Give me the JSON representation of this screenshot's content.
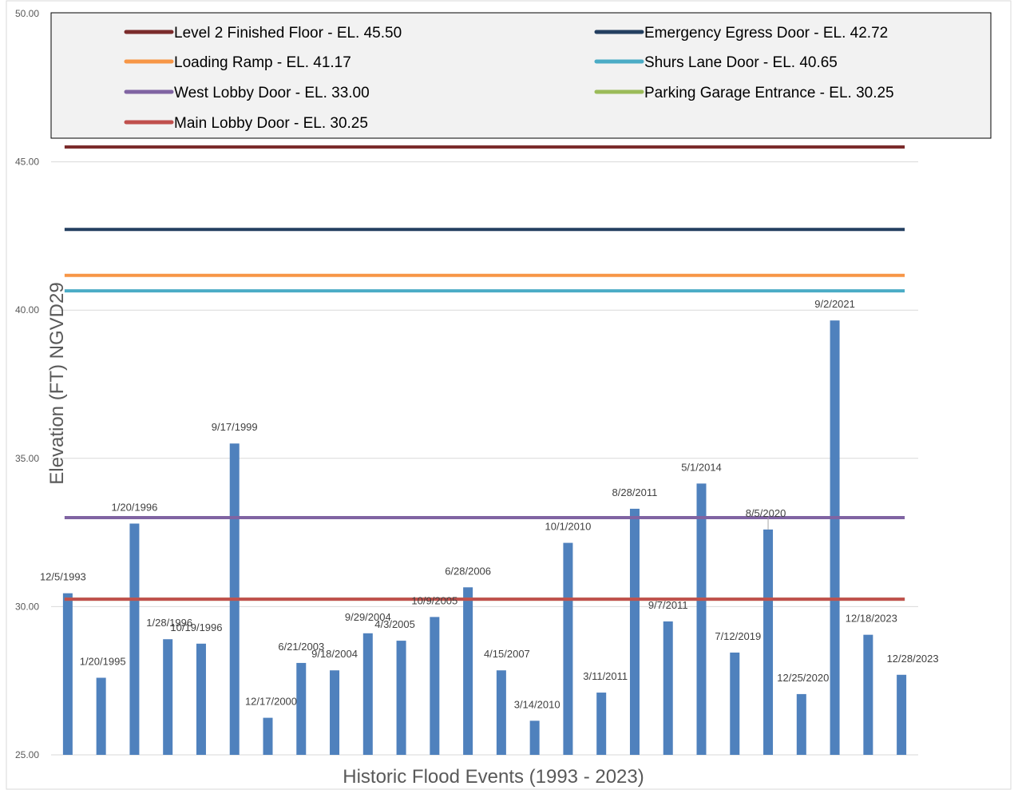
{
  "chart_data": {
    "type": "bar",
    "xlabel": "Historic Flood Events (1993 - 2023)",
    "ylabel": "Elevation (FT) NGVD29",
    "ylim": [
      25,
      50
    ],
    "y_ticks": [
      "25.00",
      "30.00",
      "35.00",
      "40.00",
      "45.00",
      "50.00"
    ],
    "grid": true,
    "legend_position": "top",
    "bar_color": "#4F81BD",
    "categories": [
      "12/5/1993",
      "1/20/1995",
      "1/20/1996",
      "1/28/1996",
      "10/19/1996",
      "9/17/1999",
      "12/17/2000",
      "6/21/2003",
      "9/18/2004",
      "9/29/2004",
      "4/3/2005",
      "10/9/2005",
      "6/28/2006",
      "4/15/2007",
      "3/14/2010",
      "10/1/2010",
      "3/11/2011",
      "8/28/2011",
      "9/7/2011",
      "5/1/2014",
      "7/12/2019",
      "8/5/2020",
      "12/25/2020",
      "9/2/2021",
      "12/18/2023",
      "12/28/2023"
    ],
    "values": [
      30.45,
      27.6,
      32.8,
      28.9,
      28.75,
      35.5,
      26.25,
      28.1,
      27.85,
      29.1,
      28.85,
      29.65,
      30.65,
      27.85,
      26.15,
      32.15,
      27.1,
      33.3,
      29.5,
      34.15,
      28.45,
      32.6,
      27.05,
      39.65,
      29.05,
      27.7
    ],
    "series": [
      {
        "name": "Level 2 Finished Floor - EL. 45.50",
        "value": 45.5,
        "color": "#7B2B2B"
      },
      {
        "name": "Emergency Egress Door - EL. 42.72",
        "value": 42.72,
        "color": "#243F60"
      },
      {
        "name": "Loading Ramp - EL. 41.17",
        "value": 41.17,
        "color": "#F79646"
      },
      {
        "name": "Shurs Lane Door - EL. 40.65",
        "value": 40.65,
        "color": "#4BACC6"
      },
      {
        "name": "West Lobby Door - EL. 33.00",
        "value": 33.0,
        "color": "#8064A2"
      },
      {
        "name": "Parking Garage Entrance - EL. 30.25",
        "value": 30.25,
        "color": "#9BBB59"
      },
      {
        "name": "Main Lobby Door - EL. 30.25",
        "value": 30.25,
        "color": "#C0504D"
      }
    ]
  }
}
